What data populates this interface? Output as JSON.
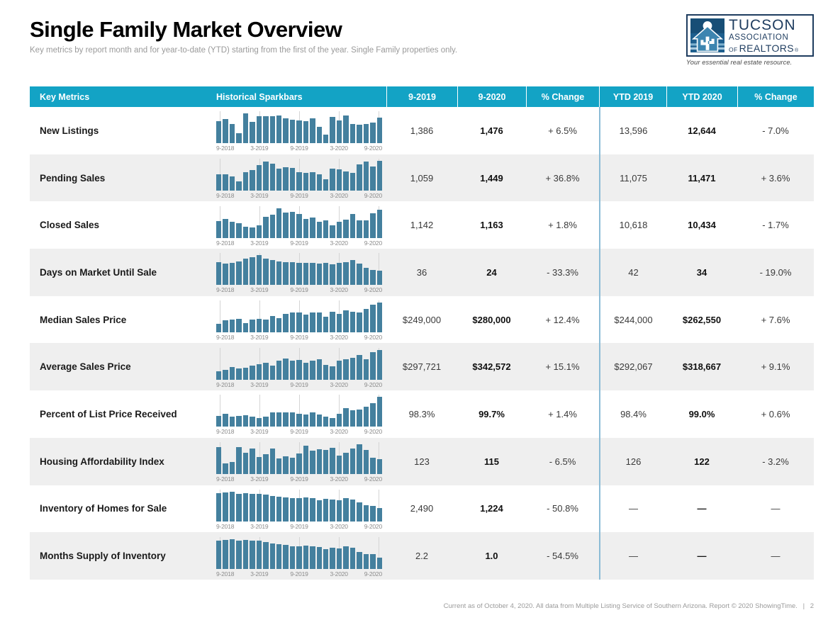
{
  "page": {
    "title": "Single Family Market Overview",
    "subtitle": "Key metrics by report month and for year-to-date (YTD) starting from the first of the year. Single Family properties only.",
    "footer": {
      "text": "Current as of October 4, 2020. All data from Multiple Listing Service of Southern Arizona. Report © 2020 ShowingTime.",
      "separator": "|",
      "page_number": "2"
    }
  },
  "logo": {
    "line1": "TUCSON",
    "line2": "ASSOCIATION",
    "line3_small": "OF",
    "line3": "REALTORS",
    "registered": "®",
    "tagline": "Your essential real estate resource.",
    "house_icon": "house-cactus-icon"
  },
  "colors": {
    "header_bg": "#13a3c5",
    "bar": "#44809e",
    "divider": "#8cbcd6",
    "alt_row": "#efefef",
    "logo_navy": "#1e3c5f"
  },
  "table": {
    "headers": [
      "Key Metrics",
      "Historical Sparkbars",
      "9-2019",
      "9-2020",
      "% Change",
      "YTD 2019",
      "YTD 2020",
      "% Change"
    ],
    "sparkbar_axis_labels": [
      "9-2018",
      "3-2019",
      "9-2019",
      "3-2020",
      "9-2020"
    ],
    "rows": [
      {
        "metric": "New Listings",
        "m2019": "1,386",
        "m2020": "1,476",
        "m_change": "+ 6.5%",
        "ytd2019": "13,596",
        "ytd2020": "12,644",
        "ytd_change": "- 7.0%",
        "spark": [
          0.75,
          0.81,
          0.66,
          0.34,
          1.0,
          0.73,
          0.91,
          0.91,
          0.91,
          0.93,
          0.85,
          0.79,
          0.77,
          0.75,
          0.84,
          0.56,
          0.3,
          0.89,
          0.76,
          0.94,
          0.65,
          0.62,
          0.65,
          0.7,
          0.87
        ]
      },
      {
        "metric": "Pending Sales",
        "m2019": "1,059",
        "m2020": "1,449",
        "m_change": "+ 36.8%",
        "ytd2019": "11,075",
        "ytd2020": "11,471",
        "ytd_change": "+ 3.6%",
        "spark": [
          0.56,
          0.56,
          0.48,
          0.3,
          0.62,
          0.7,
          0.86,
          0.98,
          0.9,
          0.73,
          0.79,
          0.76,
          0.63,
          0.59,
          0.63,
          0.56,
          0.39,
          0.73,
          0.71,
          0.64,
          0.59,
          0.88,
          0.98,
          0.81,
          1.0
        ]
      },
      {
        "metric": "Closed Sales",
        "m2019": "1,142",
        "m2020": "1,163",
        "m_change": "+ 1.8%",
        "ytd2019": "10,618",
        "ytd2020": "10,434",
        "ytd_change": "- 1.7%",
        "spark": [
          0.57,
          0.64,
          0.54,
          0.5,
          0.37,
          0.34,
          0.42,
          0.71,
          0.77,
          1.0,
          0.86,
          0.88,
          0.8,
          0.63,
          0.69,
          0.53,
          0.58,
          0.43,
          0.54,
          0.61,
          0.81,
          0.58,
          0.58,
          0.83,
          0.95
        ]
      },
      {
        "metric": "Days on Market Until Sale",
        "m2019": "36",
        "m2020": "24",
        "m_change": "- 33.3%",
        "ytd2019": "42",
        "ytd2020": "34",
        "ytd_change": "- 19.0%",
        "spark": [
          0.78,
          0.72,
          0.75,
          0.8,
          0.88,
          0.95,
          1.0,
          0.9,
          0.85,
          0.8,
          0.78,
          0.78,
          0.74,
          0.76,
          0.74,
          0.72,
          0.74,
          0.7,
          0.74,
          0.78,
          0.84,
          0.72,
          0.58,
          0.52,
          0.49
        ]
      },
      {
        "metric": "Median Sales Price",
        "m2019": "$249,000",
        "m2020": "$280,000",
        "m_change": "+ 12.4%",
        "ytd2019": "$244,000",
        "ytd2020": "$262,550",
        "ytd_change": "+ 7.6%",
        "spark": [
          0.3,
          0.4,
          0.44,
          0.46,
          0.32,
          0.44,
          0.46,
          0.44,
          0.56,
          0.48,
          0.62,
          0.66,
          0.66,
          0.6,
          0.66,
          0.66,
          0.52,
          0.7,
          0.62,
          0.74,
          0.7,
          0.68,
          0.78,
          0.92,
          1.0
        ]
      },
      {
        "metric": "Average Sales Price",
        "m2019": "$297,721",
        "m2020": "$342,572",
        "m_change": "+ 15.1%",
        "ytd2019": "$292,067",
        "ytd2020": "$318,667",
        "ytd_change": "+ 9.1%",
        "spark": [
          0.28,
          0.32,
          0.42,
          0.38,
          0.4,
          0.46,
          0.52,
          0.56,
          0.48,
          0.64,
          0.7,
          0.64,
          0.66,
          0.56,
          0.64,
          0.68,
          0.5,
          0.44,
          0.64,
          0.68,
          0.74,
          0.84,
          0.68,
          0.92,
          1.0
        ]
      },
      {
        "metric": "Percent of List Price Received",
        "m2019": "98.3%",
        "m2020": "99.7%",
        "m_change": "+ 1.4%",
        "ytd2019": "98.4%",
        "ytd2020": "99.0%",
        "ytd_change": "+ 0.6%",
        "spark": [
          0.38,
          0.45,
          0.35,
          0.38,
          0.4,
          0.35,
          0.3,
          0.35,
          0.48,
          0.48,
          0.48,
          0.48,
          0.45,
          0.42,
          0.48,
          0.42,
          0.35,
          0.3,
          0.45,
          0.62,
          0.55,
          0.58,
          0.68,
          0.8,
          1.0
        ]
      },
      {
        "metric": "Housing Affordability Index",
        "m2019": "123",
        "m2020": "115",
        "m_change": "- 6.5%",
        "ytd2019": "126",
        "ytd2020": "122",
        "ytd_change": "- 3.2%",
        "spark": [
          0.92,
          0.36,
          0.42,
          0.92,
          0.72,
          0.86,
          0.58,
          0.66,
          0.86,
          0.52,
          0.6,
          0.56,
          0.7,
          0.96,
          0.78,
          0.84,
          0.82,
          0.88,
          0.62,
          0.72,
          0.86,
          1.0,
          0.82,
          0.56,
          0.5
        ]
      },
      {
        "metric": "Inventory of Homes for Sale",
        "m2019": "2,490",
        "m2020": "1,224",
        "m_change": "- 50.8%",
        "ytd2019": "—",
        "ytd2020": "—",
        "ytd_change": "—",
        "spark": [
          0.95,
          0.97,
          1.0,
          0.93,
          0.95,
          0.93,
          0.92,
          0.9,
          0.86,
          0.84,
          0.8,
          0.78,
          0.78,
          0.8,
          0.78,
          0.72,
          0.75,
          0.74,
          0.72,
          0.78,
          0.73,
          0.65,
          0.55,
          0.53,
          0.45
        ]
      },
      {
        "metric": "Months Supply of Inventory",
        "m2019": "2.2",
        "m2020": "1.0",
        "m_change": "- 54.5%",
        "ytd2019": "—",
        "ytd2020": "—",
        "ytd_change": "—",
        "spark": [
          0.95,
          0.97,
          1.0,
          0.95,
          0.96,
          0.94,
          0.93,
          0.9,
          0.84,
          0.82,
          0.8,
          0.76,
          0.74,
          0.77,
          0.76,
          0.72,
          0.66,
          0.7,
          0.68,
          0.74,
          0.7,
          0.56,
          0.5,
          0.5,
          0.38
        ]
      }
    ]
  }
}
